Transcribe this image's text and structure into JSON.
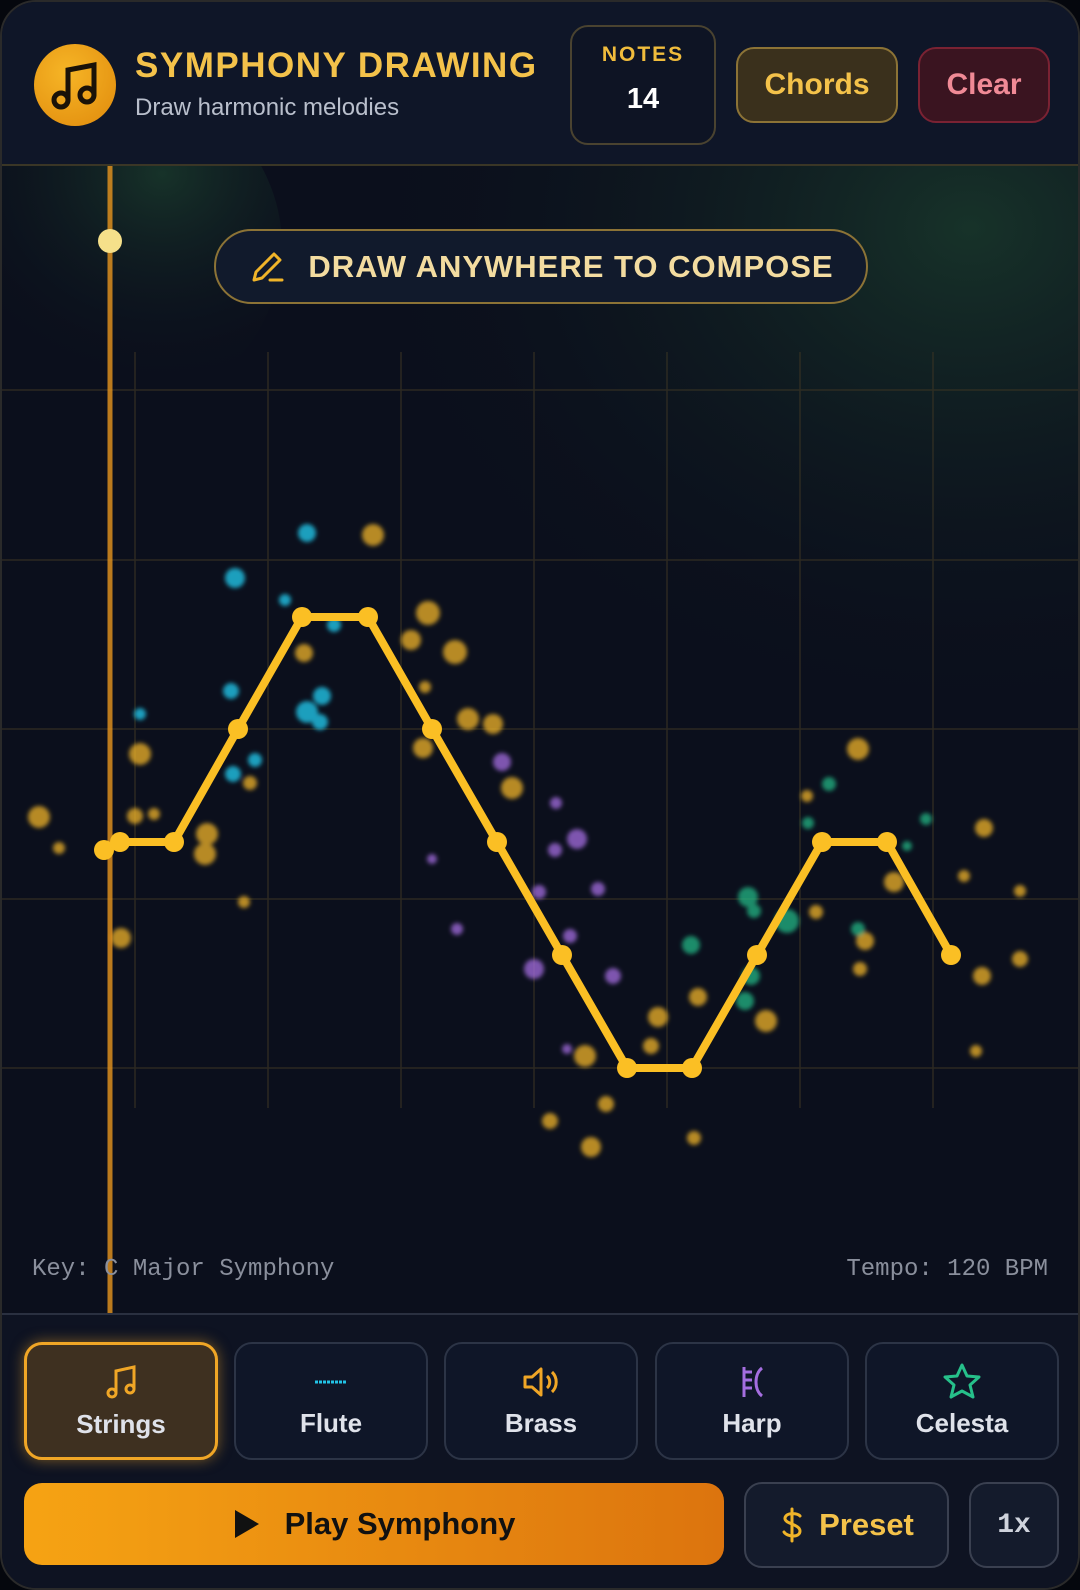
{
  "header": {
    "title": "SYMPHONY DRAWING",
    "subtitle": "Draw harmonic melodies",
    "notes_label": "NOTES",
    "notes_count": 14,
    "chords_button": "Chords",
    "clear_button": "Clear"
  },
  "canvas": {
    "hint": "DRAW ANYWHERE TO COMPOSE",
    "key": "Key: C Major Symphony",
    "tempo": "Tempo: 120 BPM"
  },
  "instruments": [
    "Strings",
    "Flute",
    "Brass",
    "Harp",
    "Celesta"
  ],
  "controls": {
    "play": "Play Symphony",
    "preset": "Preset",
    "speed": "1x"
  }
}
